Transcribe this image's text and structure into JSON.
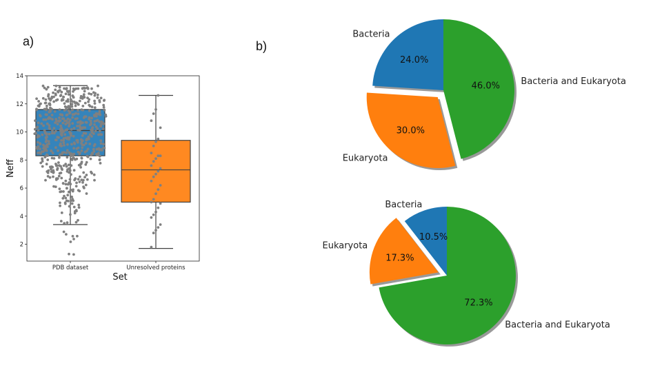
{
  "panels": {
    "a": "a)",
    "b": "b)"
  },
  "chart_data": [
    {
      "type": "box-swarm",
      "xlabel": "Set",
      "ylabel": "Neff",
      "ylim": [
        0.8,
        14
      ],
      "yticks": [
        2,
        4,
        6,
        8,
        10,
        12,
        14
      ],
      "categories": [
        "PDB dataset",
        "Unresolved proteins"
      ],
      "colors": [
        "#1f77b4",
        "#ff7f0e"
      ],
      "swarm_color": "#808080",
      "boxes": [
        {
          "name": "PDB dataset",
          "whisker_low": 3.4,
          "q1": 8.3,
          "median": 10.1,
          "q3": 11.6,
          "whisker_high": 13.3
        },
        {
          "name": "Unresolved proteins",
          "whisker_low": 1.7,
          "q1": 5.0,
          "median": 7.3,
          "q3": 9.4,
          "whisker_high": 12.6
        }
      ]
    },
    {
      "type": "pie",
      "labels": [
        "Bacteria",
        "Eukaryota",
        "Bacteria and Eukaryota"
      ],
      "values": [
        24.0,
        30.0,
        46.0
      ],
      "value_labels": [
        "24.0%",
        "30.0%",
        "46.0%"
      ],
      "colors": [
        "#1f77b4",
        "#ff7f0e",
        "#2ca02c"
      ],
      "exploded": "Eukaryota",
      "shadow": true
    },
    {
      "type": "pie",
      "labels": [
        "Bacteria",
        "Eukaryota",
        "Bacteria and Eukaryota"
      ],
      "values": [
        10.5,
        17.3,
        72.3
      ],
      "value_labels": [
        "10.5%",
        "17.3%",
        "72.3%"
      ],
      "colors": [
        "#1f77b4",
        "#ff7f0e",
        "#2ca02c"
      ],
      "exploded": "Eukaryota",
      "shadow": true
    }
  ]
}
